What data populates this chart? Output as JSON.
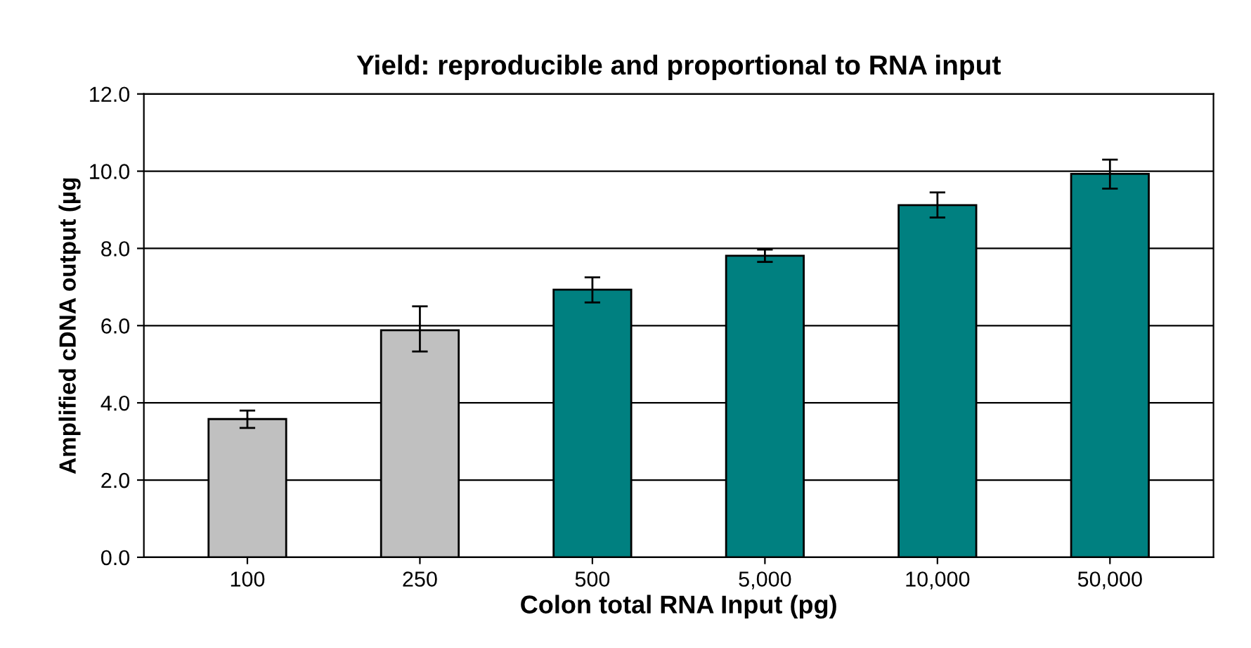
{
  "chart_data": {
    "type": "bar",
    "title": "Yield: reproducible and proportional to RNA input",
    "xlabel": "Colon total RNA Input (pg)",
    "ylabel": "Amplified cDNA output (µg",
    "categories": [
      "100",
      "250",
      "500",
      "5,000",
      "10,000",
      "50,000"
    ],
    "values": [
      3.58,
      5.88,
      6.93,
      7.81,
      9.12,
      9.93
    ],
    "colors": [
      "#c0c0c0",
      "#c0c0c0",
      "#008080",
      "#008080",
      "#008080",
      "#008080"
    ],
    "errors": [
      [
        3.35,
        3.8
      ],
      [
        5.33,
        6.5
      ],
      [
        6.6,
        7.25
      ],
      [
        7.65,
        7.97
      ],
      [
        8.8,
        9.45
      ],
      [
        9.55,
        10.3
      ]
    ],
    "ylim": [
      0,
      12
    ],
    "yticks": [
      {
        "value": 0,
        "label": "0.0"
      },
      {
        "value": 2,
        "label": "2.0"
      },
      {
        "value": 4,
        "label": "4.0"
      },
      {
        "value": 6,
        "label": "6.0"
      },
      {
        "value": 8,
        "label": "8.0"
      },
      {
        "value": 10,
        "label": "10.0"
      },
      {
        "value": 12,
        "label": "12.0"
      }
    ],
    "grid": "y",
    "legend": false
  }
}
